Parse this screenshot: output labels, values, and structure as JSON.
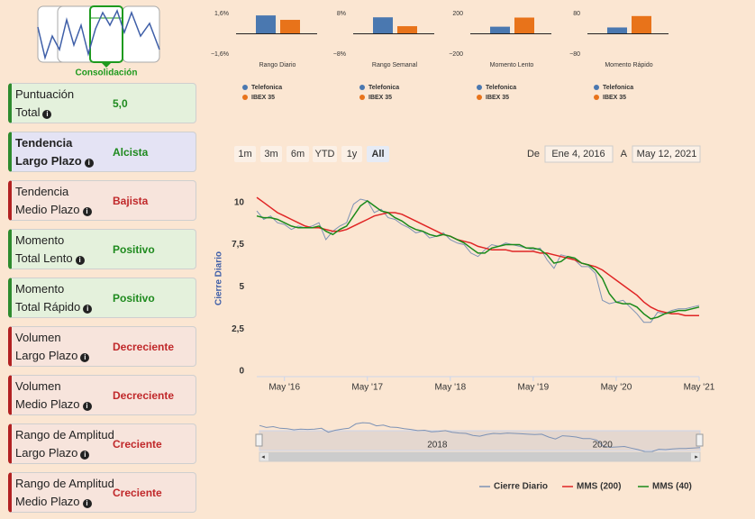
{
  "pattern": {
    "label": "Consolidación"
  },
  "cards": [
    {
      "label": [
        "Puntuación",
        "Total"
      ],
      "value": "5,0",
      "tone": "positive"
    },
    {
      "label": [
        "Tendencia",
        "Largo Plazo"
      ],
      "value": "Alcista",
      "tone": "highlight"
    },
    {
      "label": [
        "Tendencia",
        "Medio Plazo"
      ],
      "value": "Bajista",
      "tone": "negative"
    },
    {
      "label": [
        "Momento",
        "Total Lento"
      ],
      "value": "Positivo",
      "tone": "positive"
    },
    {
      "label": [
        "Momento",
        "Total Rápido"
      ],
      "value": "Positivo",
      "tone": "positive"
    },
    {
      "label": [
        "Volumen",
        "Largo Plazo"
      ],
      "value": "Decreciente",
      "tone": "negative"
    },
    {
      "label": [
        "Volumen",
        "Medio Plazo"
      ],
      "value": "Decreciente",
      "tone": "negative"
    },
    {
      "label": [
        "Rango de Amplitud",
        "Largo Plazo"
      ],
      "value": "Creciente",
      "tone": "negative"
    },
    {
      "label": [
        "Rango de Amplitud",
        "Medio Plazo"
      ],
      "value": "Creciente",
      "tone": "negative"
    }
  ],
  "chart_data": [
    {
      "type": "bar",
      "x_label": "Rango Diario",
      "ylim": [
        -1.6,
        1.6
      ],
      "yticks": [
        {
          "value": 1.6,
          "label": "1,6%"
        },
        {
          "value": -1.6,
          "label": "−1,6%"
        }
      ],
      "series": [
        {
          "name": "Telefonica",
          "color": "#4a78b0",
          "values": [
            1.45
          ]
        },
        {
          "name": "IBEX 35",
          "color": "#e8731a",
          "values": [
            1.1
          ]
        }
      ]
    },
    {
      "type": "bar",
      "x_label": "Rango Semanal",
      "ylim": [
        -8,
        8
      ],
      "yticks": [
        {
          "value": 8,
          "label": "8%"
        },
        {
          "value": -8,
          "label": "−8%"
        }
      ],
      "series": [
        {
          "name": "Telefonica",
          "color": "#4a78b0",
          "values": [
            6.5
          ]
        },
        {
          "name": "IBEX 35",
          "color": "#e8731a",
          "values": [
            3
          ]
        }
      ]
    },
    {
      "type": "bar",
      "x_label": "Momento Lento",
      "ylim": [
        -200,
        200
      ],
      "yticks": [
        200,
        {
          "value": -200,
          "label": "−200"
        }
      ],
      "series": [
        {
          "name": "Telefonica",
          "color": "#4a78b0",
          "values": [
            70
          ]
        },
        {
          "name": "IBEX 35",
          "color": "#e8731a",
          "values": [
            160
          ]
        }
      ]
    },
    {
      "type": "bar",
      "x_label": "Momento Rápido",
      "ylim": [
        -80,
        80
      ],
      "yticks": [
        80,
        {
          "value": -80,
          "label": "−80"
        }
      ],
      "series": [
        {
          "name": "Telefonica",
          "color": "#4a78b0",
          "values": [
            25
          ]
        },
        {
          "name": "IBEX 35",
          "color": "#e8731a",
          "values": [
            70
          ]
        }
      ]
    },
    {
      "type": "line",
      "y_label": "Cierre Diario",
      "range_selector": {
        "buttons": [
          "1m",
          "3m",
          "6m",
          "YTD",
          "1y",
          "All"
        ],
        "selected": 5,
        "from_label": "De",
        "from": "Ene 4, 2016",
        "to_label": "A",
        "to": "May 12, 2021"
      },
      "xlim": [
        "2016-01",
        "2021-05"
      ],
      "xticks": [
        {
          "value": "2016-05",
          "label": "May '16"
        },
        {
          "value": "2017-05",
          "label": "May '17"
        },
        {
          "value": "2018-05",
          "label": "May '18"
        },
        {
          "value": "2019-05",
          "label": "May '19"
        },
        {
          "value": "2020-05",
          "label": "May '20"
        },
        {
          "value": "2021-05",
          "label": "May '21"
        }
      ],
      "ylim": [
        0,
        11
      ],
      "yticks": [
        0,
        {
          "value": 2.5,
          "label": "2,5"
        },
        5,
        {
          "value": 7.5,
          "label": "7,5"
        },
        10
      ],
      "navigator": {
        "xticks": [
          {
            "value": "2018-01",
            "label": "2018"
          },
          {
            "value": "2020-01",
            "label": "2020"
          }
        ]
      },
      "x": [
        "2016-01",
        "2016-02",
        "2016-03",
        "2016-04",
        "2016-05",
        "2016-06",
        "2016-07",
        "2016-08",
        "2016-09",
        "2016-10",
        "2016-11",
        "2016-12",
        "2017-01",
        "2017-02",
        "2017-03",
        "2017-04",
        "2017-05",
        "2017-06",
        "2017-07",
        "2017-08",
        "2017-09",
        "2017-10",
        "2017-11",
        "2017-12",
        "2018-01",
        "2018-02",
        "2018-03",
        "2018-04",
        "2018-05",
        "2018-06",
        "2018-07",
        "2018-08",
        "2018-09",
        "2018-10",
        "2018-11",
        "2018-12",
        "2019-01",
        "2019-02",
        "2019-03",
        "2019-04",
        "2019-05",
        "2019-06",
        "2019-07",
        "2019-08",
        "2019-09",
        "2019-10",
        "2019-11",
        "2019-12",
        "2020-01",
        "2020-02",
        "2020-03",
        "2020-04",
        "2020-05",
        "2020-06",
        "2020-07",
        "2020-08",
        "2020-09",
        "2020-10",
        "2020-11",
        "2020-12",
        "2021-01",
        "2021-02",
        "2021-03",
        "2021-04",
        "2021-05"
      ],
      "series": [
        {
          "name": "Cierre Diario",
          "color": "#7d92b5",
          "values": [
            9.5,
            9.0,
            9.2,
            8.8,
            8.7,
            8.4,
            8.6,
            8.5,
            8.6,
            8.8,
            7.8,
            8.3,
            8.6,
            8.8,
            9.9,
            10.2,
            10.1,
            9.4,
            9.6,
            9.1,
            9.0,
            8.7,
            8.5,
            8.2,
            8.3,
            7.9,
            8.0,
            8.2,
            7.8,
            7.6,
            7.5,
            7.0,
            6.8,
            7.2,
            7.5,
            7.4,
            7.6,
            7.5,
            7.4,
            7.3,
            7.2,
            7.3,
            6.6,
            6.1,
            6.9,
            6.8,
            6.6,
            6.2,
            6.2,
            5.8,
            4.2,
            4.0,
            4.1,
            4.2,
            3.8,
            3.4,
            2.9,
            2.9,
            3.5,
            3.4,
            3.6,
            3.7,
            3.7,
            3.8,
            3.9
          ]
        },
        {
          "name": "MMS (200)",
          "color": "#e02525",
          "values": [
            10.3,
            10.0,
            9.7,
            9.4,
            9.2,
            9.0,
            8.8,
            8.6,
            8.5,
            8.5,
            8.4,
            8.3,
            8.3,
            8.4,
            8.6,
            8.8,
            9.0,
            9.2,
            9.3,
            9.4,
            9.4,
            9.3,
            9.1,
            8.9,
            8.7,
            8.5,
            8.3,
            8.1,
            8.0,
            7.8,
            7.7,
            7.6,
            7.4,
            7.3,
            7.2,
            7.2,
            7.2,
            7.1,
            7.1,
            7.1,
            7.1,
            7.0,
            7.0,
            6.9,
            6.8,
            6.7,
            6.6,
            6.4,
            6.3,
            6.2,
            6.0,
            5.7,
            5.4,
            5.1,
            4.8,
            4.5,
            4.1,
            3.8,
            3.6,
            3.5,
            3.4,
            3.4,
            3.3,
            3.3,
            3.3
          ]
        },
        {
          "name": "MMS (40)",
          "color": "#1a8a1a",
          "values": [
            9.2,
            9.1,
            9.1,
            9.0,
            8.8,
            8.6,
            8.5,
            8.5,
            8.5,
            8.6,
            8.3,
            8.1,
            8.4,
            8.6,
            9.2,
            9.8,
            10.1,
            9.8,
            9.5,
            9.4,
            9.1,
            8.9,
            8.6,
            8.4,
            8.3,
            8.1,
            8.0,
            8.1,
            8.0,
            7.8,
            7.6,
            7.3,
            7.0,
            7.0,
            7.3,
            7.4,
            7.5,
            7.5,
            7.5,
            7.3,
            7.3,
            7.2,
            6.9,
            6.4,
            6.5,
            6.8,
            6.7,
            6.4,
            6.3,
            6.0,
            5.5,
            4.6,
            4.1,
            4.0,
            4.0,
            3.8,
            3.4,
            3.1,
            3.2,
            3.4,
            3.5,
            3.6,
            3.6,
            3.7,
            3.8
          ]
        }
      ]
    }
  ]
}
